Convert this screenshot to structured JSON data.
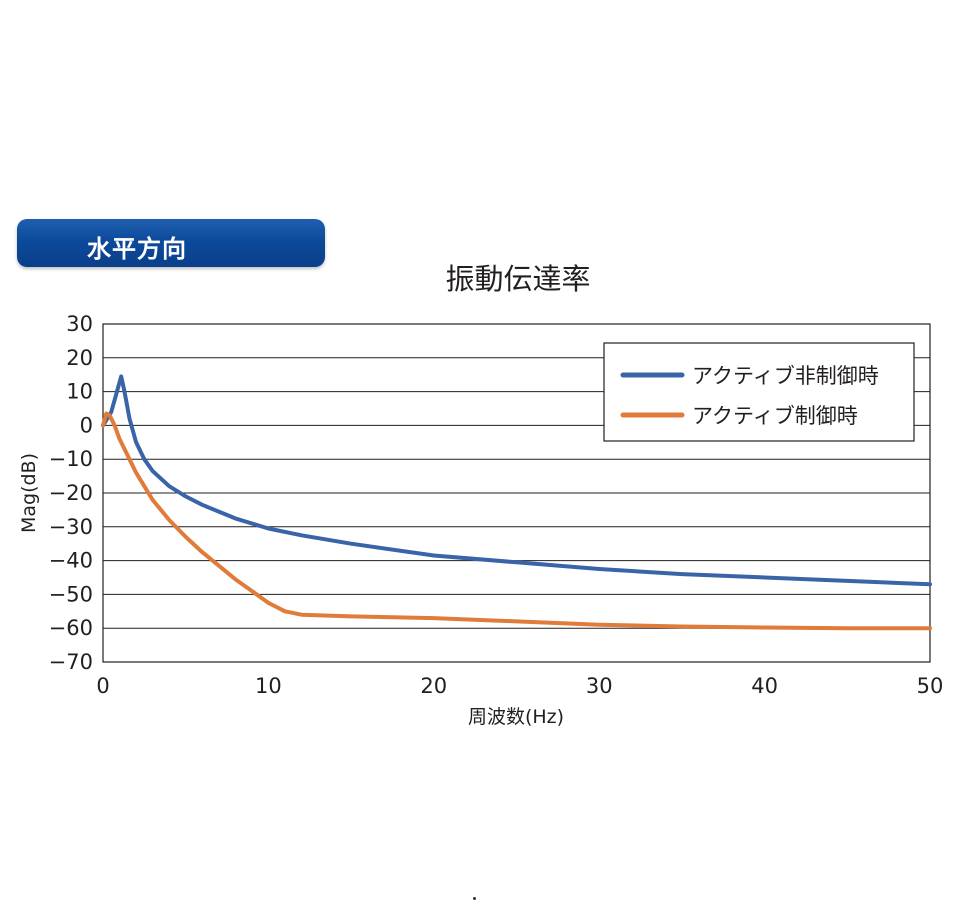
{
  "badge": {
    "label": "水平方向"
  },
  "chart_data": {
    "type": "line",
    "title": "振動伝達率",
    "xlabel": "周波数(Hz)",
    "ylabel": "Mag(dB)",
    "xlim": [
      0,
      50
    ],
    "ylim": [
      -70,
      30
    ],
    "x_ticks": [
      "0",
      "10",
      "20",
      "30",
      "40",
      "50"
    ],
    "y_ticks": [
      "30",
      "20",
      "10",
      "0",
      "−10",
      "−20",
      "−30",
      "−40",
      "−50",
      "−60",
      "−70"
    ],
    "grid": "horizontal",
    "legend_position": "top-right",
    "series": [
      {
        "name": "アクティブ非制御時",
        "color": "#3a64a8",
        "points": [
          [
            0,
            0
          ],
          [
            0.5,
            4
          ],
          [
            0.9,
            11
          ],
          [
            1.1,
            14.5
          ],
          [
            1.3,
            10
          ],
          [
            1.6,
            2
          ],
          [
            2,
            -5
          ],
          [
            2.5,
            -10
          ],
          [
            3,
            -13.5
          ],
          [
            4,
            -18
          ],
          [
            5,
            -21
          ],
          [
            6,
            -23.5
          ],
          [
            8,
            -27.5
          ],
          [
            10,
            -30.5
          ],
          [
            12,
            -32.5
          ],
          [
            15,
            -35
          ],
          [
            20,
            -38.5
          ],
          [
            25,
            -40.5
          ],
          [
            30,
            -42.5
          ],
          [
            35,
            -44
          ],
          [
            40,
            -45
          ],
          [
            45,
            -46
          ],
          [
            50,
            -47
          ]
        ]
      },
      {
        "name": "アクティブ制御時",
        "color": "#e07b39",
        "points": [
          [
            0,
            0
          ],
          [
            0.2,
            3.5
          ],
          [
            0.4,
            3
          ],
          [
            0.7,
            0
          ],
          [
            1,
            -4
          ],
          [
            1.5,
            -9
          ],
          [
            2,
            -14
          ],
          [
            3,
            -22
          ],
          [
            4,
            -28
          ],
          [
            5,
            -33
          ],
          [
            6,
            -37.5
          ],
          [
            7,
            -41.5
          ],
          [
            8,
            -45.5
          ],
          [
            9,
            -49
          ],
          [
            10,
            -52.5
          ],
          [
            11,
            -55
          ],
          [
            12,
            -56
          ],
          [
            15,
            -56.5
          ],
          [
            20,
            -57
          ],
          [
            25,
            -58
          ],
          [
            30,
            -59
          ],
          [
            35,
            -59.5
          ],
          [
            40,
            -59.8
          ],
          [
            45,
            -60
          ],
          [
            50,
            -60
          ]
        ]
      }
    ]
  }
}
